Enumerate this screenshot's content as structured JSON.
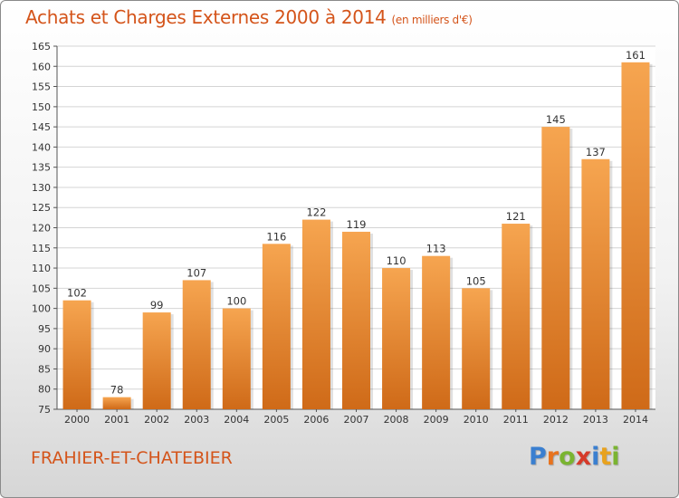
{
  "header": {
    "title": "Achats et Charges Externes 2000 à 2014",
    "unit": "(en milliers d'€)"
  },
  "footer": {
    "commune": "FRAHIER-ET-CHATEBIER",
    "logo_letters": [
      {
        "char": "P",
        "color": "#3a7fd0"
      },
      {
        "char": "r",
        "color": "#e8731e"
      },
      {
        "char": "o",
        "color": "#7ab431"
      },
      {
        "char": "x",
        "color": "#d63a2a"
      },
      {
        "char": "i",
        "color": "#3a7fd0"
      },
      {
        "char": "t",
        "color": "#e8a21e"
      },
      {
        "char": "i",
        "color": "#7ab431"
      }
    ]
  },
  "colors": {
    "bar_top": "#f6a550",
    "bar_bottom": "#cf6a18",
    "grid": "#d4d4d4",
    "title": "#d4541a"
  },
  "chart_data": {
    "type": "bar",
    "title": "Achats et Charges Externes 2000 à 2014",
    "subtitle": "(en milliers d'€)",
    "xlabel": "",
    "ylabel": "",
    "categories": [
      "2000",
      "2001",
      "2002",
      "2003",
      "2004",
      "2005",
      "2006",
      "2007",
      "2008",
      "2009",
      "2010",
      "2011",
      "2012",
      "2013",
      "2014"
    ],
    "values": [
      102,
      78,
      99,
      107,
      100,
      116,
      122,
      119,
      110,
      113,
      105,
      121,
      145,
      137,
      161
    ],
    "ylim": [
      75,
      165
    ],
    "yticks": [
      75,
      80,
      85,
      90,
      95,
      100,
      105,
      110,
      115,
      120,
      125,
      130,
      135,
      140,
      145,
      150,
      155,
      160,
      165
    ],
    "grid": true,
    "legend": "none"
  }
}
